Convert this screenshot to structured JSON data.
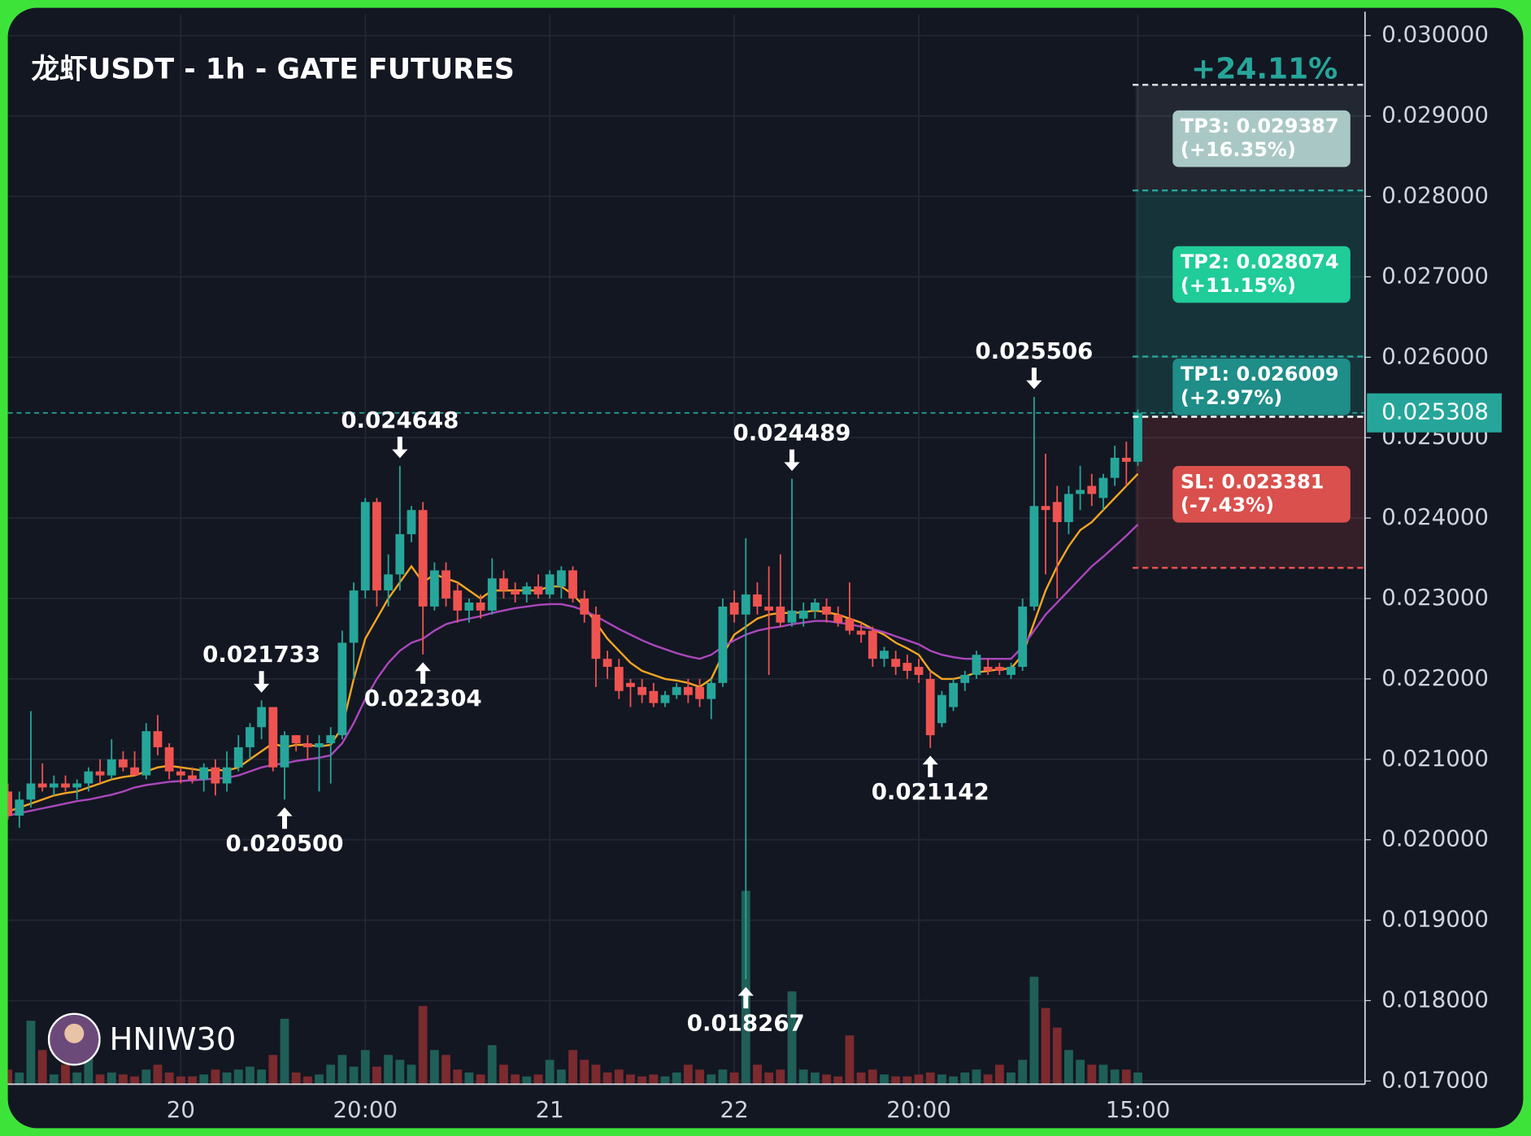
{
  "chart_data": {
    "type": "candlestick",
    "title": "龙虾USDT - 1h - GATE FUTURES",
    "watermark": "HNIW30",
    "categories": [
      null,
      null,
      null,
      null,
      null,
      null,
      null,
      null,
      null,
      null,
      null,
      null,
      null,
      null,
      null,
      "20",
      null,
      null,
      null,
      null,
      null,
      null,
      null,
      null,
      null,
      null,
      null,
      null,
      null,
      null,
      null,
      "20:00",
      null,
      null,
      null,
      null,
      null,
      null,
      null,
      null,
      null,
      null,
      null,
      null,
      null,
      null,
      null,
      "21",
      null,
      null,
      null,
      null,
      null,
      null,
      null,
      null,
      null,
      null,
      null,
      null,
      null,
      null,
      null,
      "22",
      null,
      null,
      null,
      null,
      null,
      null,
      null,
      null,
      null,
      null,
      null,
      null,
      null,
      null,
      null,
      "20:00",
      null,
      null,
      null,
      null,
      null,
      null,
      null,
      null,
      null,
      null,
      null,
      null,
      null,
      null,
      null,
      null,
      null,
      null,
      "15:00"
    ],
    "open": [
      0.0206,
      0.0203,
      0.0205,
      0.0207,
      0.02065,
      0.0207,
      0.02065,
      0.0207,
      0.02085,
      0.0208,
      0.021,
      0.0209,
      0.0208,
      0.02135,
      0.02115,
      0.02085,
      0.0208,
      0.02075,
      0.0209,
      0.0207,
      0.0209,
      0.02115,
      0.0214,
      0.02165,
      0.0209,
      0.0213,
      0.0212,
      0.02115,
      0.0212,
      0.0213,
      0.02245,
      0.0231,
      0.0242,
      0.0231,
      0.0233,
      0.0238,
      0.0241,
      0.0229,
      0.02335,
      0.0231,
      0.02285,
      0.02295,
      0.02285,
      0.02325,
      0.0231,
      0.02305,
      0.02315,
      0.02305,
      0.02315,
      0.02335,
      0.023,
      0.0228,
      0.02225,
      0.02215,
      0.02195,
      0.0219,
      0.02185,
      0.0217,
      0.0218,
      0.0219,
      0.0219,
      0.02175,
      0.02195,
      0.02295,
      0.0228,
      0.02305,
      0.0229,
      0.0229,
      0.0227,
      0.02275,
      0.02285,
      0.0229,
      0.0228,
      0.02275,
      0.0226,
      0.0226,
      0.02225,
      0.02225,
      0.0222,
      0.02215,
      0.022,
      0.02145,
      0.02165,
      0.02195,
      0.02205,
      0.02215,
      0.02215,
      0.02205,
      0.02215,
      0.0229,
      0.02415,
      0.0242,
      0.02395,
      0.0243,
      0.0244,
      0.02425,
      0.0245,
      0.02475,
      0.0247
    ],
    "high": [
      0.0207,
      0.0206,
      0.0216,
      0.02095,
      0.0208,
      0.0208,
      0.02075,
      0.0209,
      0.021,
      0.02125,
      0.0211,
      0.0211,
      0.02145,
      0.02155,
      0.0212,
      0.0209,
      0.0209,
      0.02095,
      0.021,
      0.0211,
      0.0213,
      0.02145,
      0.021733,
      0.02165,
      0.02135,
      0.0213,
      0.0213,
      0.0213,
      0.0214,
      0.0226,
      0.0232,
      0.02425,
      0.02425,
      0.02355,
      0.024648,
      0.02415,
      0.0242,
      0.02345,
      0.02345,
      0.0232,
      0.023,
      0.02305,
      0.0235,
      0.02335,
      0.0232,
      0.0232,
      0.0233,
      0.02335,
      0.0234,
      0.0234,
      0.0231,
      0.0229,
      0.02235,
      0.02225,
      0.022,
      0.022,
      0.02195,
      0.02185,
      0.02195,
      0.022,
      0.022,
      0.022,
      0.023,
      0.0231,
      0.02375,
      0.0232,
      0.0234,
      0.02355,
      0.024489,
      0.02295,
      0.023,
      0.023,
      0.0229,
      0.0232,
      0.0227,
      0.02265,
      0.0224,
      0.02235,
      0.0223,
      0.02225,
      0.0221,
      0.02185,
      0.022,
      0.0221,
      0.02235,
      0.02225,
      0.0222,
      0.0222,
      0.023,
      0.025506,
      0.0248,
      0.0244,
      0.0244,
      0.02465,
      0.02455,
      0.02455,
      0.0249,
      0.02495,
      0.02535
    ],
    "low": [
      0.02025,
      0.02015,
      0.0204,
      0.0206,
      0.02055,
      0.0206,
      0.0205,
      0.0206,
      0.0207,
      0.02075,
      0.02085,
      0.0208,
      0.02075,
      0.02105,
      0.02075,
      0.0207,
      0.0207,
      0.0206,
      0.02055,
      0.0206,
      0.02085,
      0.021,
      0.02125,
      0.02085,
      0.0205,
      0.0211,
      0.021,
      0.0206,
      0.0207,
      0.02125,
      0.022,
      0.023,
      0.0229,
      0.0229,
      0.0231,
      0.0237,
      0.022304,
      0.02285,
      0.0229,
      0.0227,
      0.0227,
      0.02275,
      0.0228,
      0.023,
      0.02295,
      0.02295,
      0.023,
      0.023,
      0.023,
      0.02295,
      0.0227,
      0.0219,
      0.022,
      0.02175,
      0.02165,
      0.0217,
      0.02165,
      0.02165,
      0.02175,
      0.0217,
      0.02165,
      0.0215,
      0.0219,
      0.0227,
      0.018267,
      0.0228,
      0.02205,
      0.02265,
      0.02265,
      0.02265,
      0.02275,
      0.0227,
      0.02265,
      0.02255,
      0.02245,
      0.02215,
      0.02215,
      0.02205,
      0.022,
      0.02195,
      0.021142,
      0.0214,
      0.0216,
      0.02185,
      0.022,
      0.02205,
      0.02205,
      0.022,
      0.0221,
      0.02285,
      0.0233,
      0.023,
      0.0238,
      0.0241,
      0.02415,
      0.0241,
      0.0244,
      0.0244,
      0.02465
    ],
    "close": [
      0.0203,
      0.0205,
      0.0207,
      0.02065,
      0.0207,
      0.02065,
      0.0207,
      0.02085,
      0.0208,
      0.021,
      0.0209,
      0.0208,
      0.02135,
      0.02115,
      0.02085,
      0.0208,
      0.02075,
      0.0209,
      0.0207,
      0.0209,
      0.02115,
      0.0214,
      0.02165,
      0.0209,
      0.0213,
      0.0212,
      0.02115,
      0.0212,
      0.0213,
      0.02245,
      0.0231,
      0.0242,
      0.0231,
      0.0233,
      0.0238,
      0.0241,
      0.0229,
      0.02335,
      0.023,
      0.02285,
      0.02295,
      0.02285,
      0.02325,
      0.0231,
      0.02305,
      0.02315,
      0.02305,
      0.0233,
      0.02335,
      0.023,
      0.0228,
      0.02225,
      0.02215,
      0.02185,
      0.0219,
      0.0218,
      0.0217,
      0.0218,
      0.0219,
      0.0218,
      0.02175,
      0.02195,
      0.0229,
      0.0228,
      0.02305,
      0.0229,
      0.02285,
      0.0227,
      0.02285,
      0.02285,
      0.02295,
      0.0228,
      0.0227,
      0.0226,
      0.02255,
      0.02225,
      0.02235,
      0.02215,
      0.0221,
      0.02205,
      0.0213,
      0.0218,
      0.02195,
      0.02205,
      0.0223,
      0.0221,
      0.0221,
      0.02215,
      0.0229,
      0.02415,
      0.0241,
      0.02395,
      0.0243,
      0.02435,
      0.0243,
      0.0245,
      0.02475,
      0.0247,
      0.025308
    ],
    "volume": [
      15,
      12,
      65,
      35,
      10,
      20,
      12,
      30,
      10,
      12,
      10,
      8,
      15,
      20,
      12,
      8,
      8,
      10,
      15,
      12,
      15,
      18,
      15,
      30,
      67,
      12,
      8,
      10,
      20,
      30,
      18,
      35,
      18,
      30,
      25,
      20,
      80,
      35,
      30,
      15,
      12,
      10,
      40,
      20,
      10,
      8,
      10,
      25,
      15,
      35,
      25,
      20,
      12,
      15,
      10,
      8,
      10,
      8,
      12,
      20,
      15,
      10,
      15,
      12,
      198,
      20,
      12,
      15,
      95,
      15,
      12,
      10,
      8,
      50,
      12,
      15,
      10,
      8,
      8,
      10,
      12,
      10,
      8,
      12,
      15,
      10,
      20,
      12,
      25,
      110,
      78,
      58,
      35,
      25,
      20,
      20,
      15,
      15,
      12
    ],
    "colors": {
      "up": "#26a69a",
      "down": "#ef5350"
    },
    "moving_averages": [
      {
        "color": "#f5a623",
        "values": [
          0.02035,
          0.0204,
          0.02045,
          0.0205,
          0.02055,
          0.02058,
          0.0206,
          0.02065,
          0.0207,
          0.02075,
          0.02078,
          0.0208,
          0.02085,
          0.0209,
          0.02092,
          0.0209,
          0.02088,
          0.02086,
          0.02087,
          0.02086,
          0.0209,
          0.021,
          0.0211,
          0.0212,
          0.02115,
          0.02118,
          0.02118,
          0.02116,
          0.02118,
          0.0214,
          0.022,
          0.0225,
          0.02275,
          0.023,
          0.0232,
          0.0234,
          0.0232,
          0.0233,
          0.02325,
          0.0232,
          0.0231,
          0.023,
          0.0231,
          0.0231,
          0.0231,
          0.0231,
          0.0231,
          0.02315,
          0.02315,
          0.02305,
          0.0229,
          0.0227,
          0.0225,
          0.02235,
          0.0222,
          0.0221,
          0.02205,
          0.022,
          0.02198,
          0.02195,
          0.0219,
          0.022,
          0.0223,
          0.02255,
          0.02265,
          0.02275,
          0.0228,
          0.02282,
          0.02282,
          0.02283,
          0.02285,
          0.02283,
          0.0228,
          0.02275,
          0.0227,
          0.02262,
          0.02255,
          0.02245,
          0.02238,
          0.0223,
          0.0221,
          0.022,
          0.022,
          0.02203,
          0.02208,
          0.0221,
          0.02212,
          0.02213,
          0.0223,
          0.0227,
          0.0231,
          0.0234,
          0.02365,
          0.02385,
          0.02395,
          0.0241,
          0.02425,
          0.0244,
          0.02455
        ]
      },
      {
        "color": "#ab47bc",
        "values": [
          0.0203,
          0.02033,
          0.02036,
          0.02039,
          0.02042,
          0.02045,
          0.02048,
          0.0205,
          0.02053,
          0.02056,
          0.0206,
          0.02065,
          0.02068,
          0.0207,
          0.02072,
          0.02073,
          0.02074,
          0.02075,
          0.02076,
          0.02077,
          0.0208,
          0.02085,
          0.0209,
          0.02093,
          0.02095,
          0.02098,
          0.021,
          0.02102,
          0.02105,
          0.0212,
          0.02145,
          0.02175,
          0.022,
          0.0222,
          0.02235,
          0.02245,
          0.0225,
          0.0226,
          0.02268,
          0.02272,
          0.02275,
          0.02278,
          0.02282,
          0.02285,
          0.02288,
          0.0229,
          0.02292,
          0.02293,
          0.02293,
          0.0229,
          0.02285,
          0.02278,
          0.0227,
          0.02262,
          0.02255,
          0.02248,
          0.02242,
          0.02237,
          0.02232,
          0.02228,
          0.02225,
          0.0223,
          0.0224,
          0.02248,
          0.02255,
          0.0226,
          0.02263,
          0.02265,
          0.02268,
          0.0227,
          0.02272,
          0.02272,
          0.0227,
          0.02268,
          0.02265,
          0.02262,
          0.02258,
          0.02253,
          0.02248,
          0.02243,
          0.02235,
          0.0223,
          0.02227,
          0.02225,
          0.02225,
          0.02225,
          0.02225,
          0.02225,
          0.0224,
          0.0226,
          0.0228,
          0.02295,
          0.0231,
          0.02325,
          0.0234,
          0.02352,
          0.02365,
          0.02378,
          0.02392
        ]
      }
    ],
    "ylim": [
      0.01696,
      0.03026
    ],
    "yticks": [
      {
        "value": 0.017,
        "label": "0.017000"
      },
      {
        "value": 0.018,
        "label": "0.018000"
      },
      {
        "value": 0.019,
        "label": "0.019000"
      },
      {
        "value": 0.02,
        "label": "0.020000"
      },
      {
        "value": 0.021,
        "label": "0.021000"
      },
      {
        "value": 0.022,
        "label": "0.022000"
      },
      {
        "value": 0.023,
        "label": "0.023000"
      },
      {
        "value": 0.024,
        "label": "0.024000"
      },
      {
        "value": 0.025,
        "label": "0.025000"
      },
      {
        "value": 0.026,
        "label": "0.026000"
      },
      {
        "value": 0.027,
        "label": "0.027000"
      },
      {
        "value": 0.028,
        "label": "0.028000"
      },
      {
        "value": 0.029,
        "label": "0.029000"
      },
      {
        "value": 0.03,
        "label": "0.030000"
      }
    ],
    "grid": true,
    "last_price": 0.025308,
    "annotations": [
      {
        "x": 22,
        "value": 0.021733,
        "arrow": "down"
      },
      {
        "x": 24,
        "value": 0.0205,
        "label": "0.020500",
        "arrow": "up"
      },
      {
        "x": 34,
        "value": 0.024648,
        "arrow": "down"
      },
      {
        "x": 36,
        "value": 0.022304,
        "arrow": "up"
      },
      {
        "x": 64,
        "value": 0.018267,
        "arrow": "up"
      },
      {
        "x": 68,
        "value": 0.024489,
        "arrow": "down"
      },
      {
        "x": 80,
        "value": 0.021142,
        "arrow": "up"
      },
      {
        "x": 89,
        "value": 0.025506,
        "arrow": "down"
      }
    ],
    "trade": {
      "gain_label": "+24.11%",
      "entry": 0.02526,
      "targets": [
        {
          "label": "TP3: 0.029387",
          "change": "(+16.35%)",
          "level": 0.029387,
          "color": "#a9c8c5"
        },
        {
          "label": "TP2: 0.028074",
          "change": "(+11.15%)",
          "level": 0.028074,
          "color": "#20cc98"
        },
        {
          "label": "TP1: 0.026009",
          "change": "(+2.97%)",
          "level": 0.026009,
          "color": "#1f8d88"
        }
      ],
      "stop": {
        "label": "SL: 0.023381",
        "change": "(-7.43%)",
        "level": 0.023381,
        "color": "#d9504d"
      }
    }
  }
}
